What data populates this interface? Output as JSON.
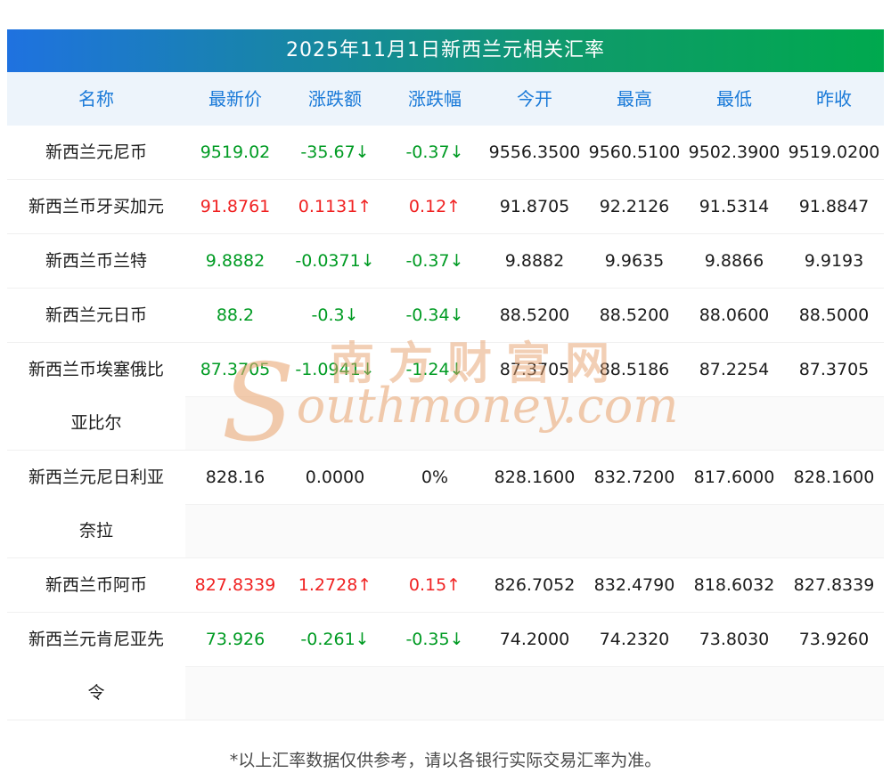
{
  "title": "2025年11月1日新西兰元相关汇率",
  "table": {
    "headers": [
      "名称",
      "最新价",
      "涨跌额",
      "涨跌幅",
      "今开",
      "最高",
      "最低",
      "昨收"
    ],
    "rows": [
      {
        "name": "新西兰元尼币",
        "latest": "9519.02",
        "change": "-35.67↓",
        "change_pct": "-0.37↓",
        "open": "9556.3500",
        "high": "9560.5100",
        "low": "9502.3900",
        "prev_close": "9519.0200",
        "trend": "down"
      },
      {
        "name": "新西兰币牙买加元",
        "latest": "91.8761",
        "change": "0.1131↑",
        "change_pct": "0.12↑",
        "open": "91.8705",
        "high": "92.2126",
        "low": "91.5314",
        "prev_close": "91.8847",
        "trend": "up"
      },
      {
        "name": "新西兰币兰特",
        "latest": "9.8882",
        "change": "-0.0371↓",
        "change_pct": "-0.37↓",
        "open": "9.8882",
        "high": "9.9635",
        "low": "9.8866",
        "prev_close": "9.9193",
        "trend": "down"
      },
      {
        "name": "新西兰元日币",
        "latest": "88.2",
        "change": "-0.3↓",
        "change_pct": "-0.34↓",
        "open": "88.5200",
        "high": "88.5200",
        "low": "88.0600",
        "prev_close": "88.5000",
        "trend": "down"
      },
      {
        "name": "新西兰币埃塞俄比亚比尔",
        "latest": "87.3705",
        "change": "-1.0941↓",
        "change_pct": "-1.24↓",
        "open": "87.3705",
        "high": "88.5186",
        "low": "87.2254",
        "prev_close": "87.3705",
        "trend": "down"
      },
      {
        "name": "新西兰元尼日利亚奈拉",
        "latest": "828.16",
        "change": "0.0000",
        "change_pct": "0%",
        "open": "828.1600",
        "high": "832.7200",
        "low": "817.6000",
        "prev_close": "828.1600",
        "trend": "flat"
      },
      {
        "name": "新西兰币阿币",
        "latest": "827.8339",
        "change": "1.2728↑",
        "change_pct": "0.15↑",
        "open": "826.7052",
        "high": "832.4790",
        "low": "818.6032",
        "prev_close": "827.8339",
        "trend": "up"
      },
      {
        "name": "新西兰元肯尼亚先令",
        "latest": "73.926",
        "change": "-0.261↓",
        "change_pct": "-0.35↓",
        "open": "74.2000",
        "high": "74.2320",
        "low": "73.8030",
        "prev_close": "73.9260",
        "trend": "down"
      }
    ]
  },
  "watermark": {
    "cn": "南方财富网",
    "initial": "S",
    "en": "outhmoney.com"
  },
  "footer": "*以上汇率数据仅供参考，请以各银行实际交易汇率为准。",
  "colors": {
    "up": "#f02222",
    "down": "#009b23",
    "header_text": "#1a7ad8",
    "header_bg": "#edf4fb",
    "title_gradient_start": "#1f72e0",
    "title_gradient_end": "#00a94e"
  }
}
